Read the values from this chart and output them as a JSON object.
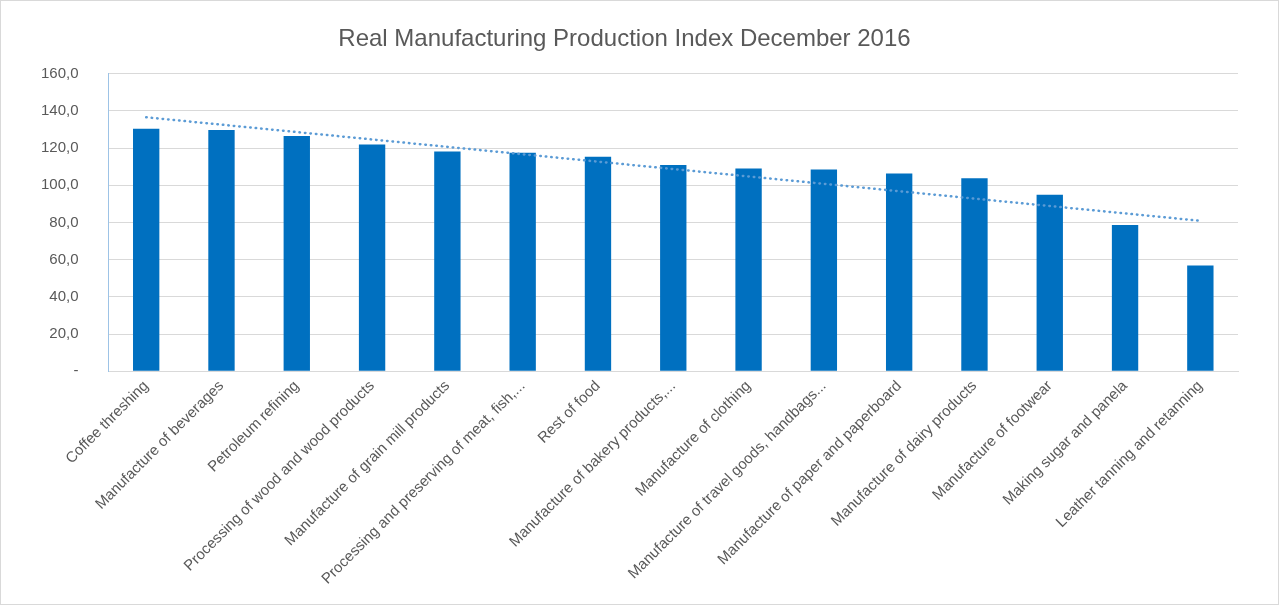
{
  "chart_data": {
    "type": "bar",
    "title": "Real Manufacturing Production Index December 2016",
    "categories": [
      "Coffee threshing",
      "Manufacture of beverages",
      "Petroleum refining",
      "Processing of wood and wood products",
      "Manufacture of grain mill products",
      "Processing and preserving of meat, fish,...",
      "Rest of food",
      "Manufacture of bakery products,...",
      "Manufacture of clothing",
      "Manufacture of travel goods, handbags...",
      "Manufacture of paper and paperboard",
      "Manufacture of dairy products",
      "Manufacture of footwear",
      "Making sugar and panela",
      "Leather tanning and retanning"
    ],
    "series": [
      {
        "color": "#0070c0",
        "values": [
          130.4,
          129.7,
          126.6,
          122.0,
          118.2,
          117.5,
          115.4,
          110.9,
          109.0,
          108.5,
          106.4,
          103.8,
          94.9,
          78.6,
          56.8
        ]
      },
      {
        "type": "line",
        "color": "#5b9bd5",
        "line_style": "dotted",
        "x": [
          "Coffee threshing",
          "Leather tanning and retanning"
        ],
        "values": [
          136.6,
          80.9
        ]
      }
    ],
    "ylim": [
      0,
      160
    ],
    "yticks": [
      {
        "value": 0,
        "label": "-"
      },
      {
        "value": 20,
        "label": "20,0"
      },
      {
        "value": 40,
        "label": "40,0"
      },
      {
        "value": 60,
        "label": "60,0"
      },
      {
        "value": 80,
        "label": "80,0"
      },
      {
        "value": 100,
        "label": "100,0"
      },
      {
        "value": 120,
        "label": "120,0"
      },
      {
        "value": 140,
        "label": "140,0"
      },
      {
        "value": 160,
        "label": "160,0"
      }
    ],
    "grid": "y",
    "legend": false,
    "marker": "none"
  }
}
